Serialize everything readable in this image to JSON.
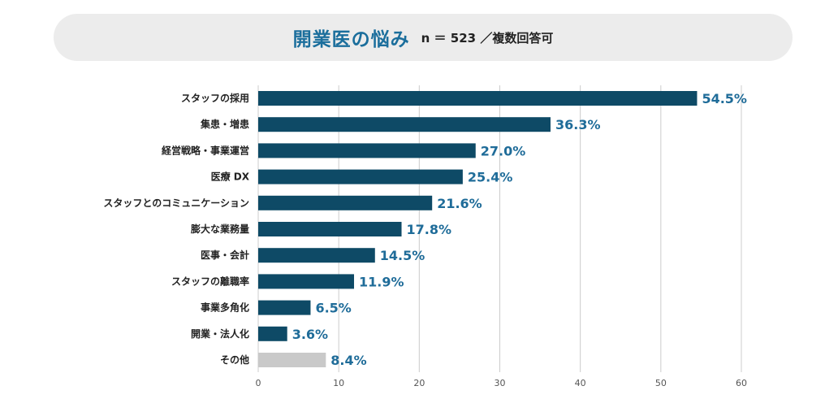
{
  "header": {
    "title": "開業医の悩み",
    "subtitle": "n ＝ 523 ／複数回答可"
  },
  "colors": {
    "bar": "#0e4a66",
    "bar_other": "#c9c9c9",
    "value_label": "#1f6c99",
    "grid": "#cccccc",
    "title": "#1b6e9c"
  },
  "chart_data": {
    "type": "bar",
    "orientation": "horizontal",
    "categories": [
      "スタッフの採用",
      "集患・増患",
      "経営戦略・事業運営",
      "医療 DX",
      "スタッフとのコミュニケーション",
      "膨大な業務量",
      "医事・会計",
      "スタッフの離職率",
      "事業多角化",
      "開業・法人化",
      "その他"
    ],
    "values": [
      54.5,
      36.3,
      27.0,
      25.4,
      21.6,
      17.8,
      14.5,
      11.9,
      6.5,
      3.6,
      8.4
    ],
    "value_labels": [
      "54.5%",
      "36.3%",
      "27.0%",
      "25.4%",
      "21.6%",
      "17.8%",
      "14.5%",
      "11.9%",
      "6.5%",
      "3.6%",
      "8.4%"
    ],
    "xlim": [
      0,
      60
    ],
    "xticks": [
      0,
      10,
      20,
      30,
      40,
      50,
      60
    ],
    "grid": true,
    "title": "開業医の悩み",
    "subtitle": "n ＝ 523 ／複数回答可",
    "xlabel": "",
    "ylabel": ""
  }
}
